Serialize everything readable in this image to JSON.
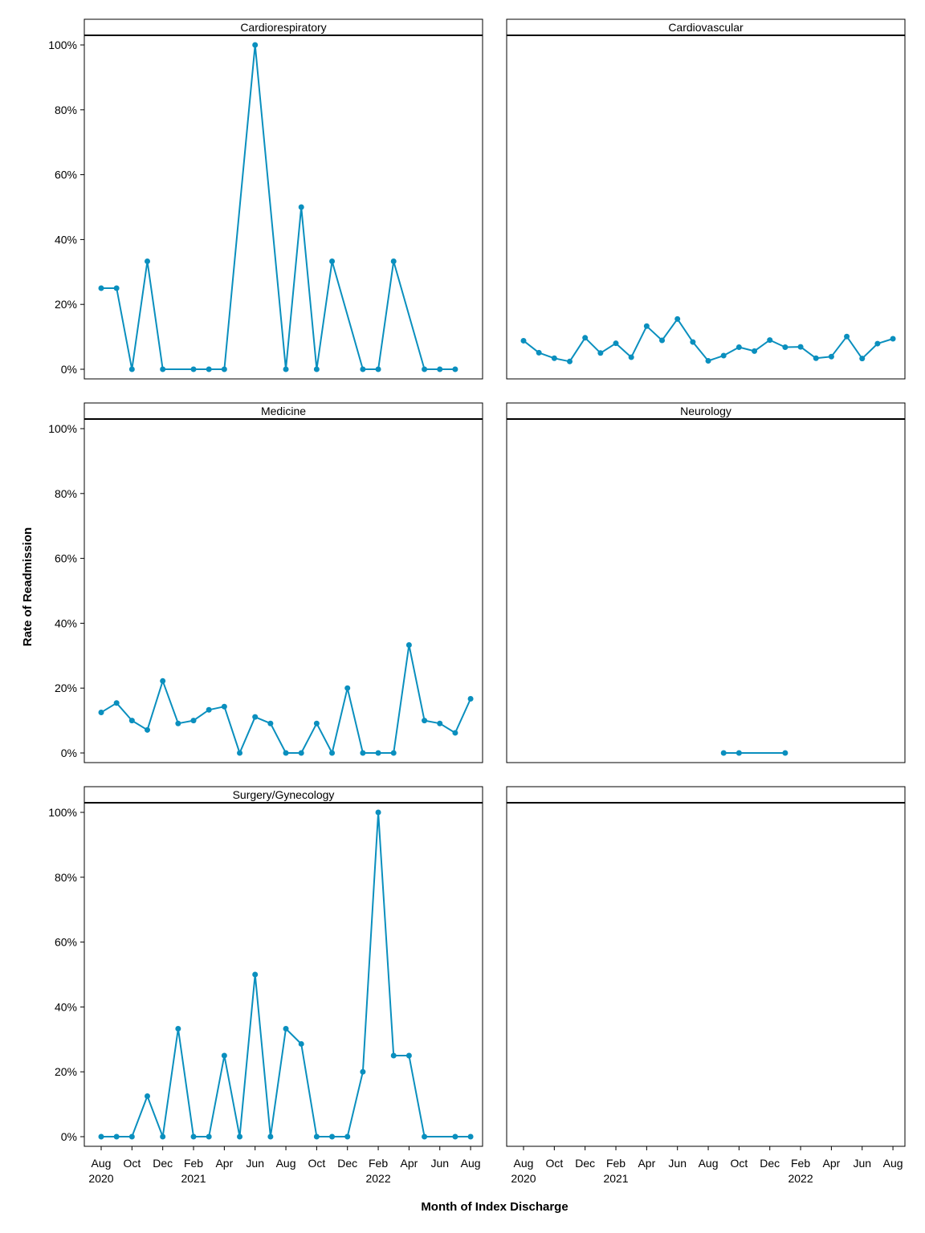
{
  "chart_data": {
    "type": "line",
    "layout": "facet-grid",
    "grid": false,
    "legend": "none",
    "xlabel": "Month of Index Discharge",
    "ylabel": "Rate of Readmission",
    "ylim": [
      0,
      1
    ],
    "y_ticks": [
      "0%",
      "20%",
      "40%",
      "60%",
      "80%",
      "100%"
    ],
    "x_ticks": [
      "Aug",
      "Oct",
      "Dec",
      "Feb",
      "Apr",
      "Jun",
      "Aug",
      "Oct",
      "Dec",
      "Feb",
      "Apr",
      "Jun",
      "Aug"
    ],
    "x_years": [
      "2020",
      "2021",
      "2022"
    ],
    "x_range": [
      "2020-08",
      "2022-08"
    ],
    "colors": {
      "series": "#0a8fbe",
      "axis": "#000000"
    },
    "panels": [
      {
        "title": "Cardiorespiratory",
        "points": [
          [
            "2020-08",
            0.25
          ],
          [
            "2020-09",
            0.25
          ],
          [
            "2020-10",
            0.0
          ],
          [
            "2020-11",
            0.333
          ],
          [
            "2020-12",
            0.0
          ],
          [
            "2021-02",
            0.0
          ],
          [
            "2021-03",
            0.0
          ],
          [
            "2021-04",
            0.0
          ],
          [
            "2021-06",
            1.0
          ],
          [
            "2021-08",
            0.0
          ],
          [
            "2021-09",
            0.5
          ],
          [
            "2021-10",
            0.0
          ],
          [
            "2021-11",
            0.333
          ],
          [
            "2022-01",
            0.0
          ],
          [
            "2022-02",
            0.0
          ],
          [
            "2022-03",
            0.333
          ],
          [
            "2022-05",
            0.0
          ],
          [
            "2022-06",
            0.0
          ],
          [
            "2022-07",
            0.0
          ]
        ]
      },
      {
        "title": "Cardiovascular",
        "points": [
          [
            "2020-08",
            0.088
          ],
          [
            "2020-09",
            0.051
          ],
          [
            "2020-10",
            0.034
          ],
          [
            "2020-11",
            0.024
          ],
          [
            "2020-12",
            0.097
          ],
          [
            "2021-01",
            0.05
          ],
          [
            "2021-02",
            0.08
          ],
          [
            "2021-03",
            0.037
          ],
          [
            "2021-04",
            0.133
          ],
          [
            "2021-05",
            0.089
          ],
          [
            "2021-06",
            0.155
          ],
          [
            "2021-07",
            0.084
          ],
          [
            "2021-08",
            0.026
          ],
          [
            "2021-09",
            0.042
          ],
          [
            "2021-10",
            0.068
          ],
          [
            "2021-11",
            0.056
          ],
          [
            "2021-12",
            0.09
          ],
          [
            "2022-01",
            0.068
          ],
          [
            "2022-02",
            0.069
          ],
          [
            "2022-03",
            0.034
          ],
          [
            "2022-04",
            0.039
          ],
          [
            "2022-05",
            0.101
          ],
          [
            "2022-06",
            0.033
          ],
          [
            "2022-07",
            0.079
          ],
          [
            "2022-08",
            0.094
          ]
        ]
      },
      {
        "title": "Medicine",
        "points": [
          [
            "2020-08",
            0.125
          ],
          [
            "2020-09",
            0.154
          ],
          [
            "2020-10",
            0.1
          ],
          [
            "2020-11",
            0.071
          ],
          [
            "2020-12",
            0.222
          ],
          [
            "2021-01",
            0.091
          ],
          [
            "2021-02",
            0.1
          ],
          [
            "2021-03",
            0.133
          ],
          [
            "2021-04",
            0.143
          ],
          [
            "2021-05",
            0.0
          ],
          [
            "2021-06",
            0.111
          ],
          [
            "2021-07",
            0.091
          ],
          [
            "2021-08",
            0.0
          ],
          [
            "2021-09",
            0.0
          ],
          [
            "2021-10",
            0.091
          ],
          [
            "2021-11",
            0.0
          ],
          [
            "2021-12",
            0.2
          ],
          [
            "2022-01",
            0.0
          ],
          [
            "2022-02",
            0.0
          ],
          [
            "2022-03",
            0.0
          ],
          [
            "2022-04",
            0.333
          ],
          [
            "2022-05",
            0.1
          ],
          [
            "2022-06",
            0.091
          ],
          [
            "2022-07",
            0.062
          ],
          [
            "2022-08",
            0.167
          ]
        ]
      },
      {
        "title": "Neurology",
        "points": [
          [
            "2021-09",
            0.0
          ],
          [
            "2021-10",
            0.0
          ],
          [
            "2022-01",
            0.0
          ]
        ]
      },
      {
        "title": "Surgery/Gynecology",
        "points": [
          [
            "2020-08",
            0.0
          ],
          [
            "2020-09",
            0.0
          ],
          [
            "2020-10",
            0.0
          ],
          [
            "2020-11",
            0.125
          ],
          [
            "2020-12",
            0.0
          ],
          [
            "2021-01",
            0.333
          ],
          [
            "2021-02",
            0.0
          ],
          [
            "2021-03",
            0.0
          ],
          [
            "2021-04",
            0.25
          ],
          [
            "2021-05",
            0.0
          ],
          [
            "2021-06",
            0.5
          ],
          [
            "2021-07",
            0.0
          ],
          [
            "2021-08",
            0.333
          ],
          [
            "2021-09",
            0.286
          ],
          [
            "2021-10",
            0.0
          ],
          [
            "2021-11",
            0.0
          ],
          [
            "2021-12",
            0.0
          ],
          [
            "2022-01",
            0.2
          ],
          [
            "2022-02",
            1.0
          ],
          [
            "2022-03",
            0.25
          ],
          [
            "2022-04",
            0.25
          ],
          [
            "2022-05",
            0.0
          ],
          [
            "2022-07",
            0.0
          ],
          [
            "2022-08",
            0.0
          ]
        ]
      },
      {
        "title": "",
        "points": []
      }
    ]
  }
}
